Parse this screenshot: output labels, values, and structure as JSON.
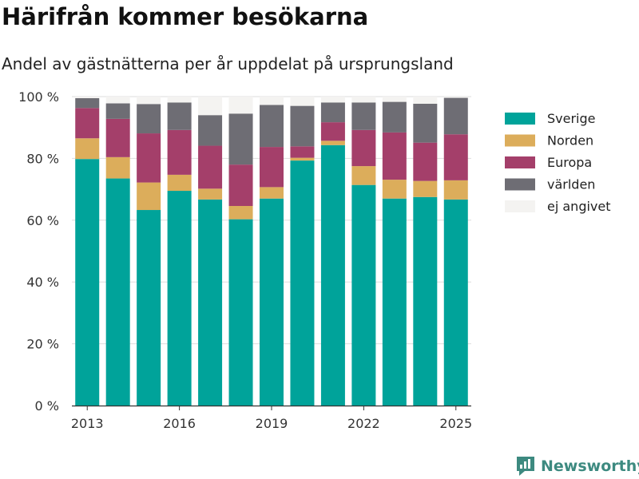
{
  "header": {
    "title": "Härifrån kommer besökarna",
    "subtitle": "Andel av gästnätterna per år uppdelat på ursprungsland"
  },
  "brand": {
    "name": "Newsworthy",
    "icon": "newsworthy-logo-icon",
    "color": "#3d8a80"
  },
  "chart_data": {
    "type": "bar",
    "stacked": true,
    "categories": [
      2013,
      2014,
      2015,
      2016,
      2017,
      2018,
      2019,
      2020,
      2021,
      2022,
      2023,
      2024,
      2025
    ],
    "x_ticks": [
      "2013",
      "2016",
      "2019",
      "2022",
      "2025"
    ],
    "y_ticks": [
      "0 %",
      "20 %",
      "40 %",
      "60 %",
      "80 %",
      "100 %"
    ],
    "ylim": [
      0,
      100
    ],
    "grid": true,
    "legend_position": "right",
    "series": [
      {
        "name": "Sverige",
        "color": "#00a39a",
        "values": [
          79.8,
          73.5,
          63.3,
          69.5,
          66.7,
          60.3,
          67.0,
          79.3,
          84.3,
          71.4,
          67.0,
          67.5,
          66.7
        ]
      },
      {
        "name": "Norden",
        "color": "#dcad5b",
        "values": [
          6.7,
          6.9,
          8.9,
          5.2,
          3.5,
          4.3,
          3.7,
          0.9,
          1.4,
          6.1,
          6.1,
          5.2,
          6.2
        ]
      },
      {
        "name": "Europa",
        "color": "#a43f6a",
        "values": [
          9.8,
          12.4,
          15.9,
          14.5,
          13.9,
          13.4,
          13.0,
          3.7,
          6.0,
          11.7,
          15.3,
          12.4,
          14.9
        ]
      },
      {
        "name": "världen",
        "color": "#6e6d74",
        "values": [
          3.2,
          5.0,
          9.5,
          8.9,
          9.9,
          16.5,
          13.6,
          13.1,
          6.4,
          8.9,
          9.9,
          12.6,
          11.8
        ]
      },
      {
        "name": "ej angivet",
        "color": "#f4f3f1",
        "values": [
          0.5,
          2.2,
          2.4,
          1.9,
          6.0,
          5.5,
          2.7,
          3.0,
          1.9,
          1.9,
          1.7,
          2.3,
          0.4
        ]
      }
    ]
  }
}
